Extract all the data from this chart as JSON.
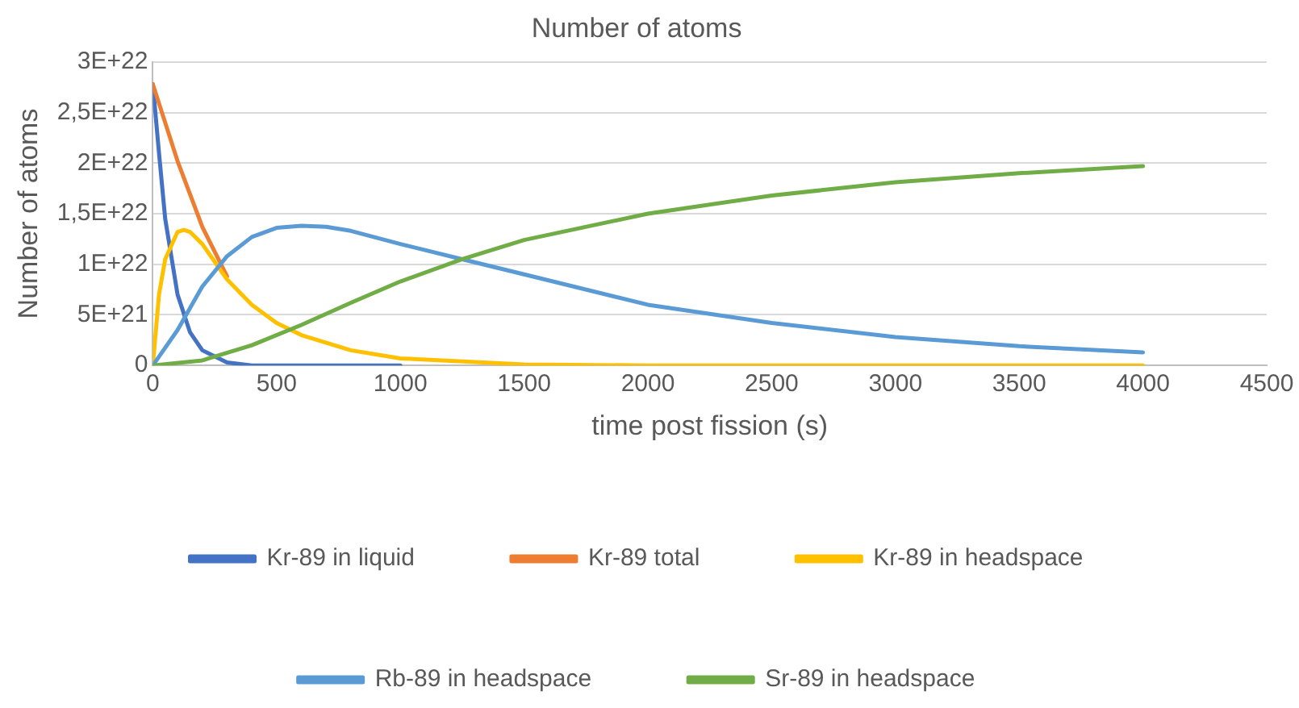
{
  "chart_data": {
    "type": "line",
    "title": "Number of atoms",
    "xlabel": "time post fission (s)",
    "ylabel": "Number of atoms",
    "xlim": [
      0,
      4500
    ],
    "xticks": [
      0,
      500,
      1000,
      1500,
      2000,
      2500,
      3000,
      3500,
      4000,
      4500
    ],
    "ylim": [
      0,
      3e+22
    ],
    "yticks": [
      {
        "value": 0,
        "label": "0"
      },
      {
        "value": 5e+21,
        "label": "5E+21"
      },
      {
        "value": 1e+22,
        "label": "1E+22"
      },
      {
        "value": 1.5e+22,
        "label": "1,5E+22"
      },
      {
        "value": 2e+22,
        "label": "2E+22"
      },
      {
        "value": 2.5e+22,
        "label": "2,5E+22"
      },
      {
        "value": 3e+22,
        "label": "3E+22"
      }
    ],
    "grid": "y",
    "legend": "bottom",
    "marker": "none",
    "line_style": "solid",
    "series": [
      {
        "name": "Kr-89 in liquid",
        "color": "#4472c4",
        "x": [
          0,
          25,
          50,
          100,
          150,
          200,
          300,
          400,
          500,
          1000
        ],
        "values": [
          2.78e+22,
          2.1e+22,
          1.45e+22,
          7e+21,
          3.3e+21,
          1.5e+21,
          3e+20,
          0,
          0,
          0
        ]
      },
      {
        "name": "Kr-89 total",
        "color": "#ed7d31",
        "x": [
          0,
          100,
          200,
          300
        ],
        "values": [
          2.78e+22,
          2.02e+22,
          1.37e+22,
          8.8e+21
        ]
      },
      {
        "name": "Kr-89 in headspace",
        "color": "#ffc000",
        "x": [
          0,
          25,
          50,
          100,
          125,
          150,
          200,
          300,
          400,
          500,
          600,
          800,
          1000,
          1500,
          2000,
          3000,
          4000
        ],
        "values": [
          0,
          7e+21,
          1.05e+22,
          1.32e+22,
          1.34e+22,
          1.32e+22,
          1.2e+22,
          8.5e+21,
          6e+21,
          4.2e+21,
          3e+21,
          1.5e+21,
          7e+20,
          1e+20,
          0,
          0,
          0
        ]
      },
      {
        "name": "Rb-89 in headspace",
        "color": "#5b9bd5",
        "x": [
          0,
          100,
          200,
          300,
          400,
          500,
          600,
          700,
          800,
          1000,
          1250,
          1500,
          2000,
          2500,
          3000,
          3500,
          4000
        ],
        "values": [
          0,
          3.5e+21,
          7.8e+21,
          1.08e+22,
          1.27e+22,
          1.36e+22,
          1.38e+22,
          1.37e+22,
          1.33e+22,
          1.2e+22,
          1.05e+22,
          9e+21,
          6e+21,
          4.2e+21,
          2.8e+21,
          1.9e+21,
          1.3e+21
        ]
      },
      {
        "name": "Sr-89 in headspace",
        "color": "#70ad47",
        "x": [
          0,
          200,
          400,
          600,
          800,
          1000,
          1250,
          1500,
          2000,
          2500,
          3000,
          3500,
          4000
        ],
        "values": [
          0,
          5e+20,
          2e+21,
          4e+21,
          6.2e+21,
          8.3e+21,
          1.05e+22,
          1.24e+22,
          1.5e+22,
          1.68e+22,
          1.81e+22,
          1.9e+22,
          1.97e+22
        ]
      }
    ]
  }
}
